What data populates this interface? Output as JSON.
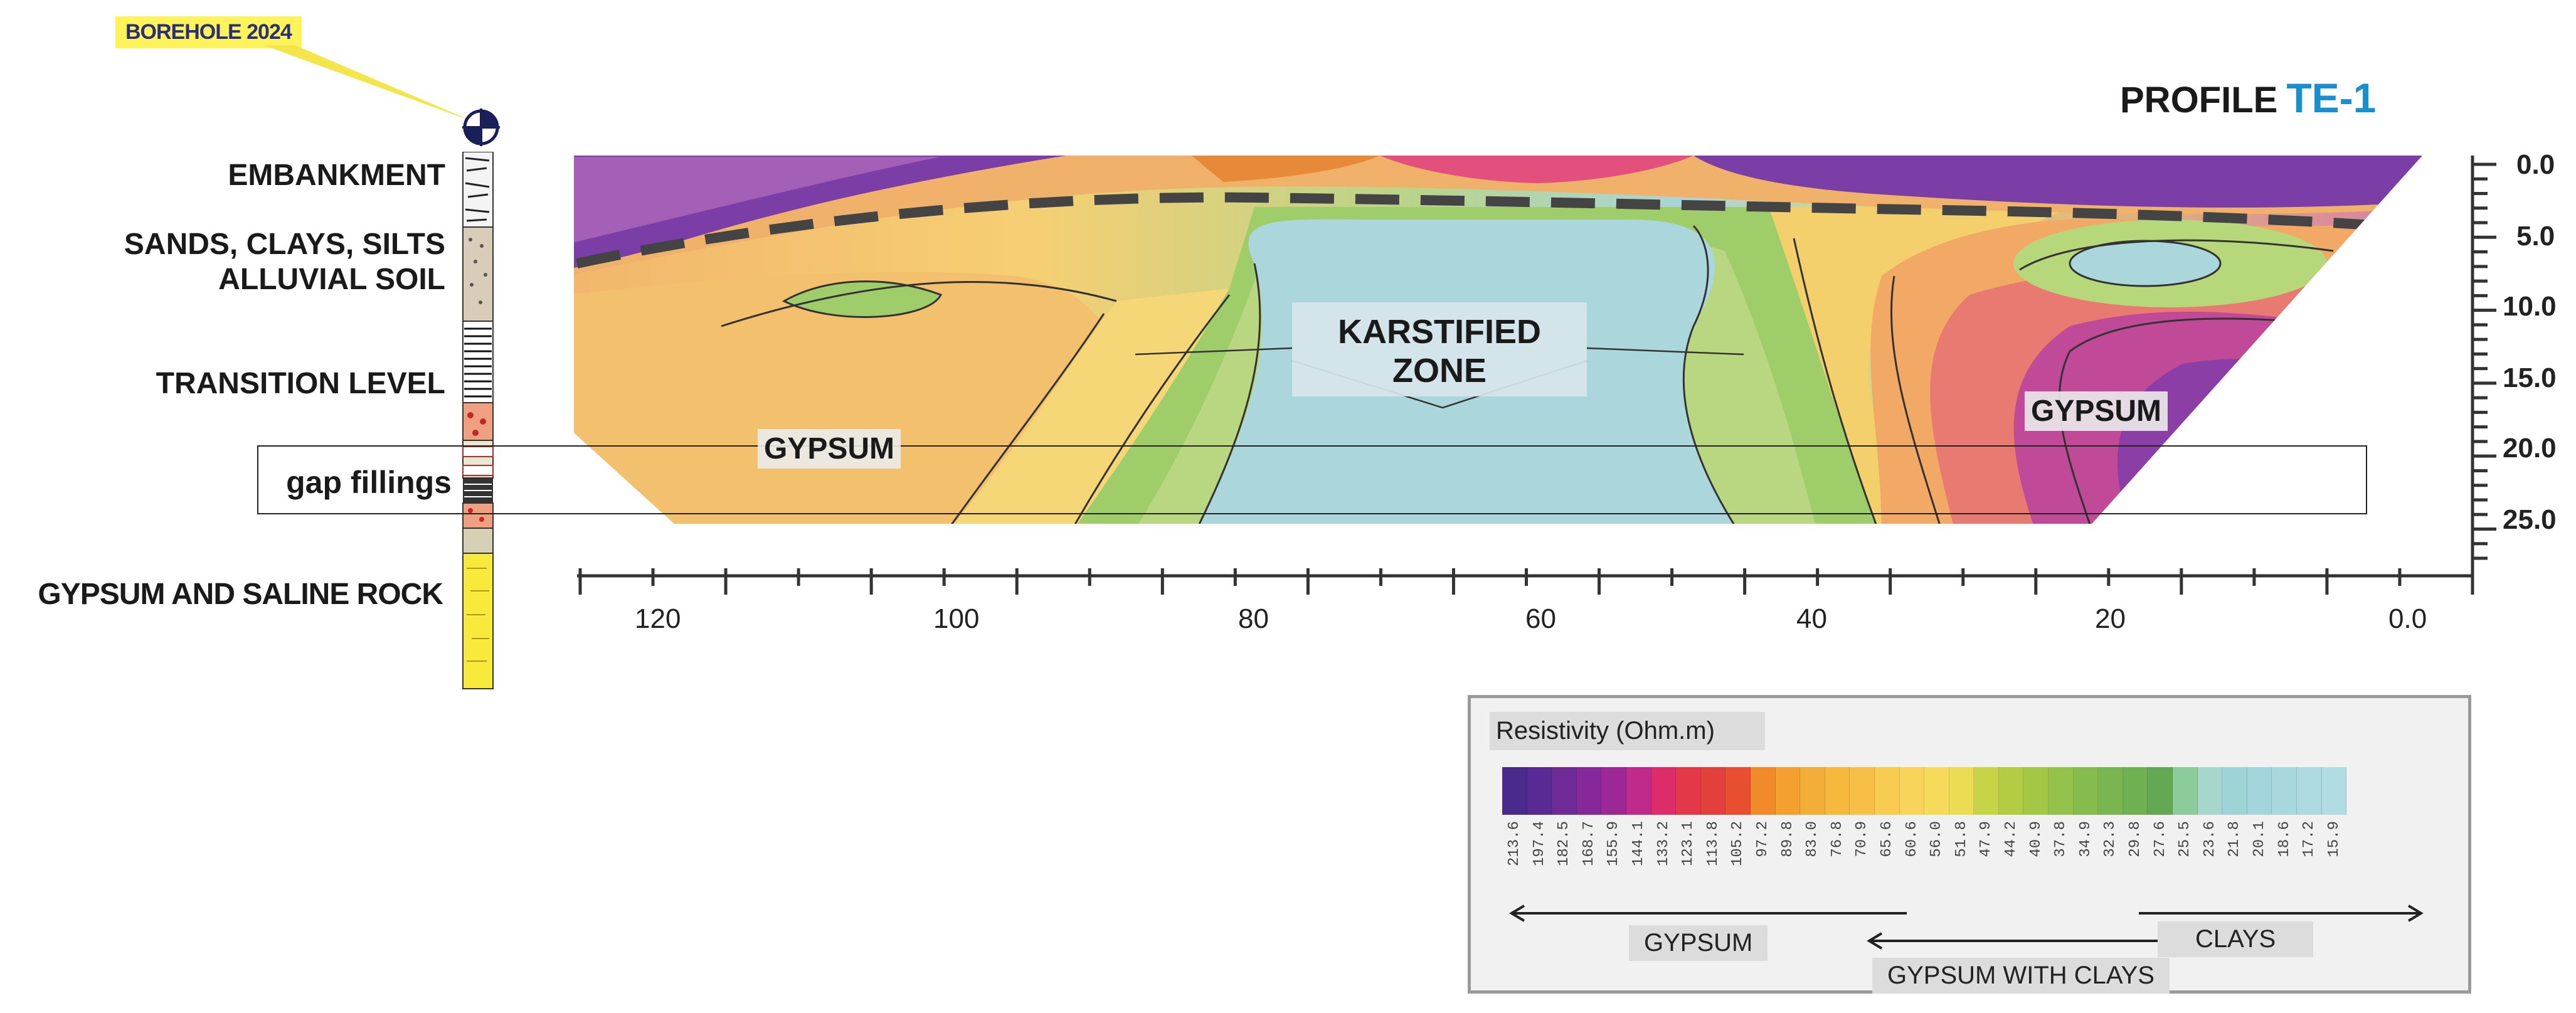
{
  "borehole": {
    "tag": "BOREHOLE 2024",
    "layers": [
      "EMBANKMENT",
      "SANDS, CLAYS, SILTS",
      "ALLUVIAL SOIL",
      "TRANSITION LEVEL",
      "gap fillings",
      "GYPSUM AND SALINE ROCK"
    ]
  },
  "profile": {
    "prefix": "PROFILE",
    "code": "TE-1",
    "code_color": "#1a8fd0"
  },
  "section_labels": {
    "karst": [
      "KARSTIFIED",
      "ZONE"
    ],
    "gypsum_left": "GYPSUM",
    "gypsum_right": "GYPSUM"
  },
  "axes": {
    "x_ticks": [
      "120",
      "100",
      "80",
      "60",
      "40",
      "20",
      "0.0"
    ],
    "y_ticks": [
      "0.0",
      "5.0",
      "10.0",
      "15.0",
      "20.0",
      "25.0"
    ]
  },
  "legend": {
    "title": "Resistivity (Ohm.m)",
    "values": [
      "213.6",
      "197.4",
      "182.5",
      "168.7",
      "155.9",
      "144.1",
      "133.2",
      "123.1",
      "113.8",
      "105.2",
      "97.2",
      "89.8",
      "83.0",
      "76.8",
      "70.9",
      "65.6",
      "60.6",
      "56.0",
      "51.8",
      "47.9",
      "44.2",
      "40.9",
      "37.8",
      "34.9",
      "32.3",
      "29.8",
      "27.6",
      "25.5",
      "23.6",
      "21.8",
      "20.1",
      "18.6",
      "17.2",
      "15.9"
    ],
    "colors": [
      "#4a2a8c",
      "#5a2a94",
      "#6e2b98",
      "#84289a",
      "#9c2898",
      "#c02a8a",
      "#dc2c6a",
      "#e23848",
      "#e2403a",
      "#e84e30",
      "#f08a2a",
      "#f4a030",
      "#f2ae38",
      "#f6b83e",
      "#f6c046",
      "#f8cc50",
      "#f8d45a",
      "#f6da5c",
      "#ecdc54",
      "#c8d448",
      "#b4cc44",
      "#a4c846",
      "#94c24a",
      "#86bc4e",
      "#7ab650",
      "#6eb052",
      "#64a854",
      "#8ccc9a",
      "#a6d6cc",
      "#9ed4d6",
      "#a2d6dc",
      "#a8d8de",
      "#acdae0",
      "#b0dce2"
    ],
    "ranges": [
      "GYPSUM",
      "GYPSUM WITH CLAYS",
      "CLAYS"
    ]
  }
}
